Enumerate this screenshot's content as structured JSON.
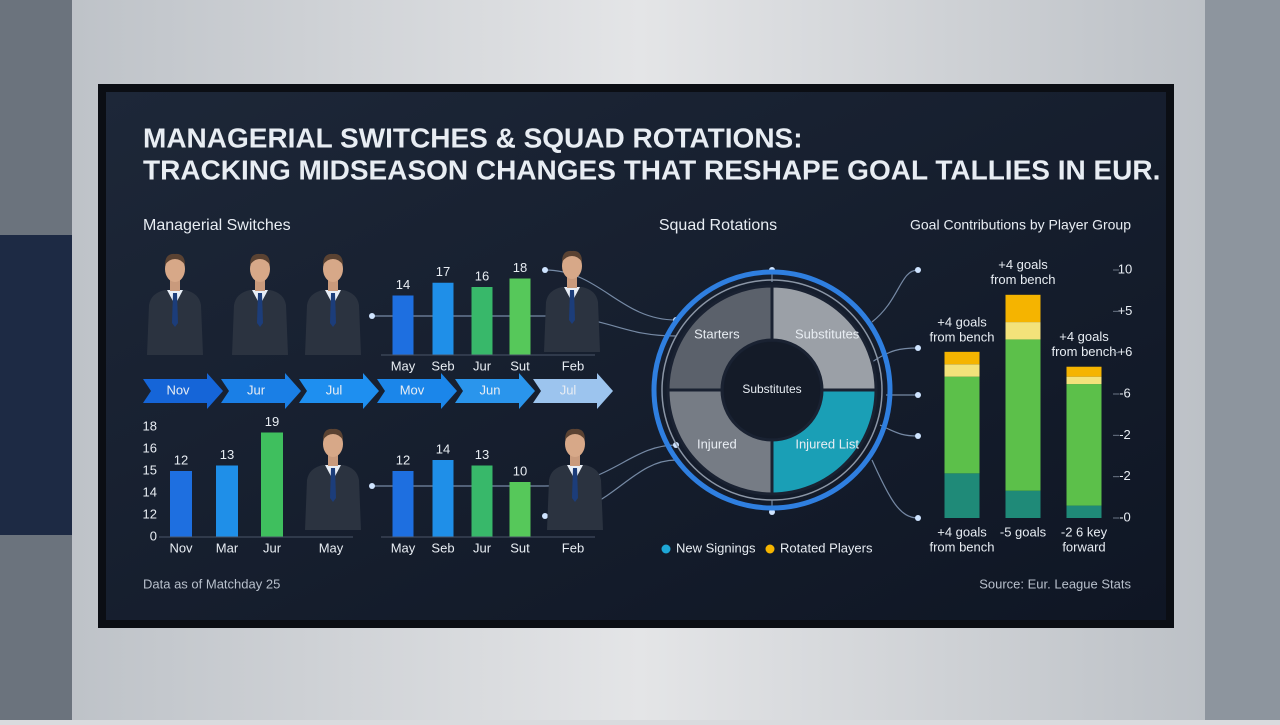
{
  "title": [
    "MANAGERIAL SWITCHES & SQUAD ROTATIONS:",
    "TRACKING MIDSEASON CHANGES THAT RESHAPE GOAL TALLIES IN EUR."
  ],
  "headings": {
    "managerial": "Managerial Switches",
    "squad": "Squad Rotations",
    "goals": "Goal Contributions by Player Group"
  },
  "timeline": [
    "Nov",
    "Jur",
    "Jul",
    "Mov",
    "Jun",
    "Jul"
  ],
  "footnote": "Data as of Matchday 25",
  "source": "Source: Eur. League Stats",
  "chart_data": [
    {
      "type": "bar",
      "categories": [
        "May",
        "Seb",
        "Jur",
        "Sut",
        "Feb"
      ],
      "values": [
        14,
        17,
        16,
        18,
        null
      ],
      "colors": [
        "#1e6fe0",
        "#1f8fe8",
        "#38b86a",
        "#56c85a",
        "#56c85a"
      ],
      "ylim": [
        0,
        20
      ]
    },
    {
      "type": "bar",
      "categories": [
        "Nov",
        "Mar",
        "Jur",
        "May"
      ],
      "values": [
        12,
        13,
        19,
        null
      ],
      "colors": [
        "#1e6fe0",
        "#1f8fe8",
        "#3fbf5e",
        "#3fbf5e"
      ],
      "ylim": [
        0,
        20
      ],
      "y_labels": [
        "18",
        "16",
        "15",
        "14",
        "12",
        "0"
      ]
    },
    {
      "type": "bar",
      "categories": [
        "May",
        "Seb",
        "Jur",
        "Sut",
        "Feb"
      ],
      "values": [
        12,
        14,
        13,
        10,
        null
      ],
      "colors": [
        "#1e6fe0",
        "#1f8fe8",
        "#38b86a",
        "#56c85a",
        "#56c85a"
      ],
      "ylim": [
        0,
        20
      ]
    },
    {
      "type": "pie",
      "categories": [
        "Starters",
        "Substitutes",
        "Injured List",
        "Injured"
      ],
      "values": [
        25,
        25,
        25,
        25
      ],
      "colors": [
        "#5b616b",
        "#9ba0a7",
        "#1a9fb6",
        "#767c85"
      ],
      "center_label": "Substitutes",
      "legend": [
        {
          "name": "New Signings",
          "color": "#1ea7d6"
        },
        {
          "name": "Rotated Players",
          "color": "#f5b400"
        }
      ]
    },
    {
      "type": "stacked_bar",
      "top_labels": [
        [
          "+4 goals",
          "from bench"
        ],
        [
          "+4 goals",
          "from bench"
        ],
        [
          "+4 goals",
          "from bench"
        ]
      ],
      "bottom_labels": [
        [
          "+4 goals",
          "from bench"
        ],
        [
          "-5 goals"
        ],
        [
          "-2 6 key",
          "forward"
        ]
      ],
      "series": [
        {
          "color": "#1f8a78",
          "values": [
            1.8,
            1.1,
            0.5
          ]
        },
        {
          "color": "#5cc04a",
          "values": [
            3.9,
            6.1,
            4.9
          ]
        },
        {
          "color": "#f3e27a",
          "values": [
            0.5,
            0.7,
            0.3
          ]
        },
        {
          "color": "#f5b400",
          "values": [
            0.5,
            1.1,
            0.4
          ]
        }
      ],
      "ylim": [
        0,
        10
      ],
      "y_labels": [
        "10",
        "+5",
        "+6",
        "-6",
        "-2",
        "-2",
        "-0"
      ]
    }
  ]
}
